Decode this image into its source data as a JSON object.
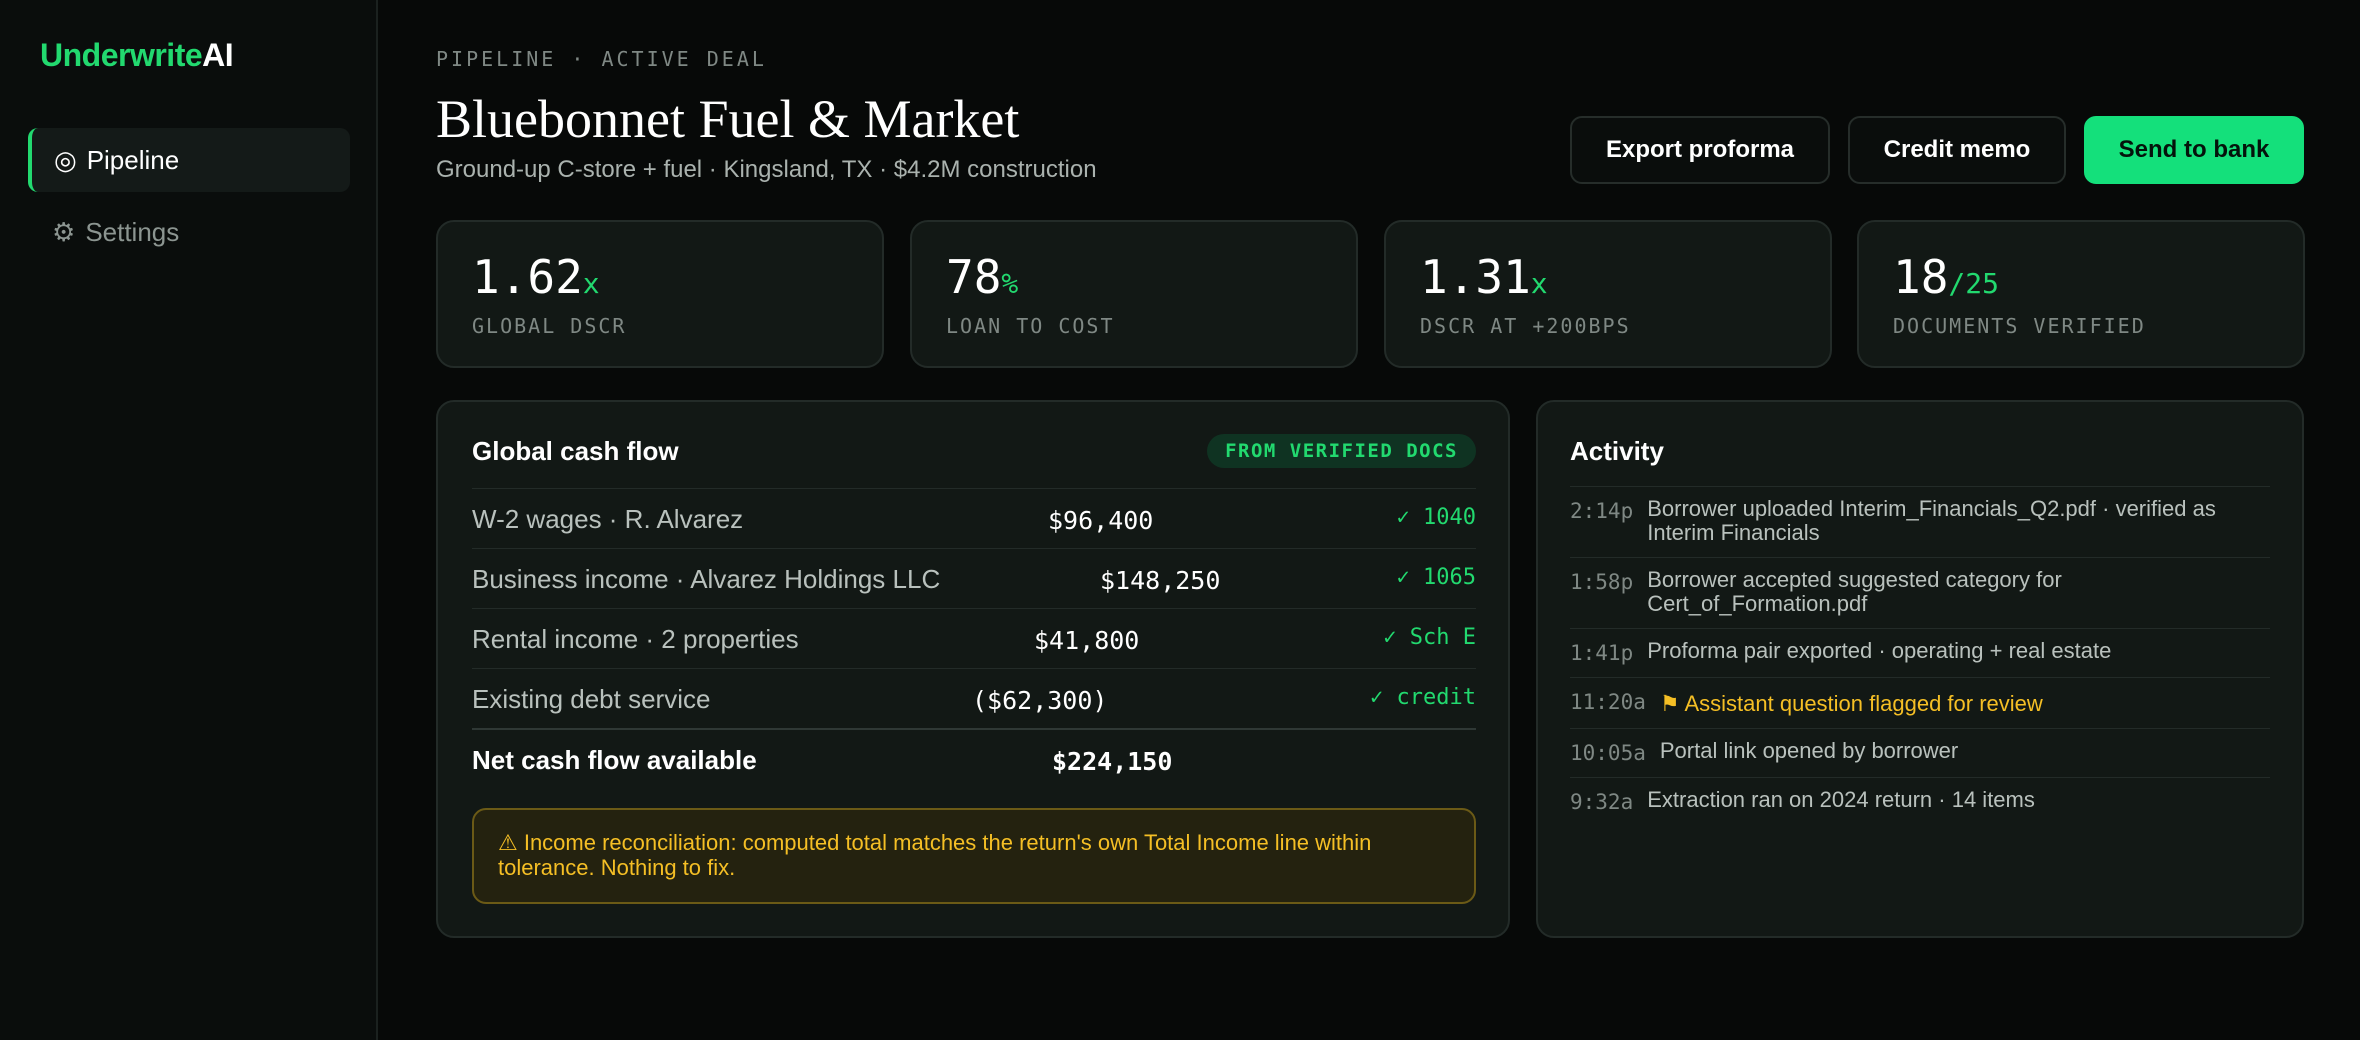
{
  "app": {
    "logo_accent": "Underwrite",
    "logo_plain": "AI"
  },
  "sidebar": {
    "items": [
      {
        "icon": "◎",
        "label": "Pipeline",
        "active": true
      },
      {
        "icon": "⚙",
        "label": "Settings",
        "active": false
      }
    ]
  },
  "header": {
    "eyebrow": "PIPELINE · ACTIVE DEAL",
    "title": "Bluebonnet Fuel & Market",
    "subtitle": "Ground-up C-store + fuel · Kingsland, TX · $4.2M construction",
    "buttons": {
      "export": "Export proforma",
      "memo": "Credit memo",
      "send": "Send to bank"
    }
  },
  "kpis": [
    {
      "value": "1.62",
      "suffix": "x",
      "label": "GLOBAL DSCR"
    },
    {
      "value": "78",
      "suffix": "%",
      "label": "LOAN TO COST"
    },
    {
      "value": "1.31",
      "suffix": "x",
      "label": "DSCR AT +200BPS"
    },
    {
      "value": "18",
      "suffix": "/25",
      "label": "DOCUMENTS VERIFIED"
    }
  ],
  "cashflow": {
    "title": "Global cash flow",
    "badge": "FROM VERIFIED DOCS",
    "rows": [
      {
        "label": "W-2 wages · R. Alvarez",
        "amount": "$96,400",
        "source": "✓ 1040"
      },
      {
        "label": "Business income · Alvarez Holdings LLC",
        "amount": "$148,250",
        "source": "✓ 1065"
      },
      {
        "label": "Rental income · 2 properties",
        "amount": "$41,800",
        "source": "✓ Sch E"
      },
      {
        "label": "Existing debt service",
        "amount": "($62,300)",
        "source": "✓ credit"
      }
    ],
    "total": {
      "label": "Net cash flow available",
      "amount": "$224,150"
    },
    "notice": "⚠ Income reconciliation: computed total matches the return's own Total Income line within tolerance. Nothing to fix."
  },
  "activity": {
    "title": "Activity",
    "items": [
      {
        "time": "2:14p",
        "text": "Borrower uploaded Interim_Financials_Q2.pdf · verified as Interim Financials"
      },
      {
        "time": "1:58p",
        "text": "Borrower accepted suggested category for Cert_of_Formation.pdf"
      },
      {
        "time": "1:41p",
        "text": "Proforma pair exported · operating + real estate"
      },
      {
        "time": "11:20a",
        "text": "⚑ Assistant question flagged for review",
        "flagged": true
      },
      {
        "time": "10:05a",
        "text": "Portal link opened by borrower"
      },
      {
        "time": "9:32a",
        "text": "Extraction ran on 2024 return · 14 items"
      }
    ]
  },
  "colors": {
    "accent": "#22d96f",
    "primary_button": "#14e07b",
    "warning": "#f5bf25",
    "background": "#070908",
    "card": "#121815"
  }
}
